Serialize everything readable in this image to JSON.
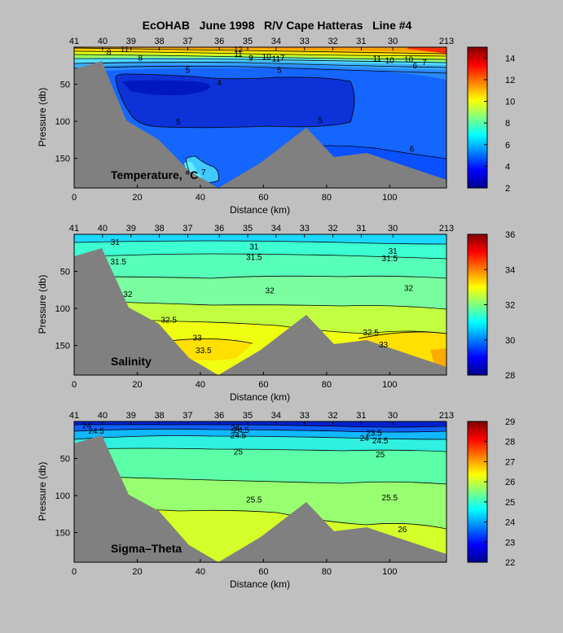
{
  "title": "EcOHAB   June 1998   R/V Cape Hatteras   Line #4",
  "chart_data": [
    {
      "type": "heatmap",
      "name": "temperature",
      "panel_label": "Temperature, °C",
      "xlabel": "Distance (km)",
      "ylabel": "Pressure (db)",
      "xlim": [
        0,
        118
      ],
      "ylim": [
        0,
        190
      ],
      "y_reversed": true,
      "xticks": [
        0,
        20,
        40,
        60,
        80,
        100
      ],
      "yticks": [
        50,
        100,
        150
      ],
      "station_labels": [
        "41",
        "40",
        "39",
        "38",
        "37",
        "36",
        "35",
        "34",
        "33",
        "32",
        "31",
        "30",
        "213"
      ],
      "station_km": [
        0,
        9,
        18,
        27,
        36,
        46,
        55,
        64,
        73,
        82,
        91,
        101,
        118
      ],
      "colorbar": {
        "min": 2,
        "max": 15,
        "ticks": [
          2,
          4,
          6,
          8,
          10,
          12,
          14
        ],
        "colormap": "jet"
      },
      "contour_labels": [
        {
          "x": 11,
          "y": 6,
          "text": "8"
        },
        {
          "x": 16,
          "y": 2,
          "text": "11"
        },
        {
          "x": 21,
          "y": 14,
          "text": "8"
        },
        {
          "x": 52,
          "y": 2,
          "text": "12"
        },
        {
          "x": 52,
          "y": 8,
          "text": "11"
        },
        {
          "x": 56,
          "y": 14,
          "text": "9"
        },
        {
          "x": 61,
          "y": 12,
          "text": "10"
        },
        {
          "x": 64,
          "y": 15,
          "text": "11"
        },
        {
          "x": 66,
          "y": 14,
          "text": "7"
        },
        {
          "x": 36,
          "y": 30,
          "text": "5"
        },
        {
          "x": 65,
          "y": 30,
          "text": "5"
        },
        {
          "x": 46,
          "y": 47,
          "text": "4"
        },
        {
          "x": 33,
          "y": 100,
          "text": "5"
        },
        {
          "x": 78,
          "y": 98,
          "text": "5"
        },
        {
          "x": 96,
          "y": 15,
          "text": "11"
        },
        {
          "x": 100,
          "y": 17,
          "text": "10"
        },
        {
          "x": 106,
          "y": 16,
          "text": "10"
        },
        {
          "x": 108,
          "y": 24,
          "text": "6"
        },
        {
          "x": 111,
          "y": 20,
          "text": "7"
        },
        {
          "x": 107,
          "y": 137,
          "text": "6"
        },
        {
          "x": 41,
          "y": 168,
          "text": "7"
        }
      ]
    },
    {
      "type": "heatmap",
      "name": "salinity",
      "panel_label": "Salinity",
      "xlabel": "Distance (km)",
      "ylabel": "Pressure (db)",
      "xlim": [
        0,
        118
      ],
      "ylim": [
        0,
        190
      ],
      "y_reversed": true,
      "xticks": [
        0,
        20,
        40,
        60,
        80,
        100
      ],
      "yticks": [
        50,
        100,
        150
      ],
      "station_labels": [
        "41",
        "40",
        "39",
        "38",
        "37",
        "36",
        "35",
        "34",
        "33",
        "32",
        "31",
        "30",
        "213"
      ],
      "station_km": [
        0,
        9,
        18,
        27,
        36,
        46,
        55,
        64,
        73,
        82,
        91,
        101,
        118
      ],
      "colorbar": {
        "min": 28,
        "max": 36,
        "ticks": [
          28,
          30,
          32,
          34,
          36
        ],
        "colormap": "jet"
      },
      "contour_labels": [
        {
          "x": 13,
          "y": 10,
          "text": "31"
        },
        {
          "x": 57,
          "y": 16,
          "text": "31"
        },
        {
          "x": 57,
          "y": 30,
          "text": "31.5"
        },
        {
          "x": 101,
          "y": 22,
          "text": "31"
        },
        {
          "x": 100,
          "y": 32,
          "text": "31.5"
        },
        {
          "x": 14,
          "y": 36,
          "text": "31.5"
        },
        {
          "x": 62,
          "y": 75,
          "text": "32"
        },
        {
          "x": 106,
          "y": 72,
          "text": "32"
        },
        {
          "x": 17,
          "y": 80,
          "text": "32"
        },
        {
          "x": 30,
          "y": 115,
          "text": "32.5"
        },
        {
          "x": 39,
          "y": 139,
          "text": "33"
        },
        {
          "x": 41,
          "y": 156,
          "text": "33.5"
        },
        {
          "x": 94,
          "y": 132,
          "text": "32.5"
        },
        {
          "x": 98,
          "y": 148,
          "text": "33"
        }
      ]
    },
    {
      "type": "heatmap",
      "name": "sigma-theta",
      "panel_label": "Sigma–Theta",
      "xlabel": "Distance (km)",
      "ylabel": "Pressure (db)",
      "xlim": [
        0,
        118
      ],
      "ylim": [
        0,
        190
      ],
      "y_reversed": true,
      "xticks": [
        0,
        20,
        40,
        60,
        80,
        100
      ],
      "yticks": [
        50,
        100,
        150
      ],
      "station_labels": [
        "41",
        "40",
        "39",
        "38",
        "37",
        "36",
        "35",
        "34",
        "33",
        "32",
        "31",
        "30",
        "213"
      ],
      "station_km": [
        0,
        9,
        18,
        27,
        36,
        46,
        55,
        64,
        73,
        82,
        91,
        101,
        118
      ],
      "colorbar": {
        "min": 22,
        "max": 29,
        "ticks": [
          22,
          23,
          24,
          25,
          26,
          27,
          28,
          29
        ],
        "colormap": "jet"
      },
      "contour_labels": [
        {
          "x": 4,
          "y": 5,
          "text": "24"
        },
        {
          "x": 7,
          "y": 12,
          "text": "24.5"
        },
        {
          "x": 51,
          "y": 8,
          "text": "24"
        },
        {
          "x": 53,
          "y": 11,
          "text": "24.5"
        },
        {
          "x": 52,
          "y": 18,
          "text": "24.5"
        },
        {
          "x": 95,
          "y": 15,
          "text": "23.5"
        },
        {
          "x": 92,
          "y": 22,
          "text": "24"
        },
        {
          "x": 97,
          "y": 25,
          "text": "24.5"
        },
        {
          "x": 52,
          "y": 40,
          "text": "25"
        },
        {
          "x": 97,
          "y": 44,
          "text": "25"
        },
        {
          "x": 57,
          "y": 105,
          "text": "25.5"
        },
        {
          "x": 100,
          "y": 102,
          "text": "25.5"
        },
        {
          "x": 104,
          "y": 145,
          "text": "26"
        }
      ]
    }
  ]
}
